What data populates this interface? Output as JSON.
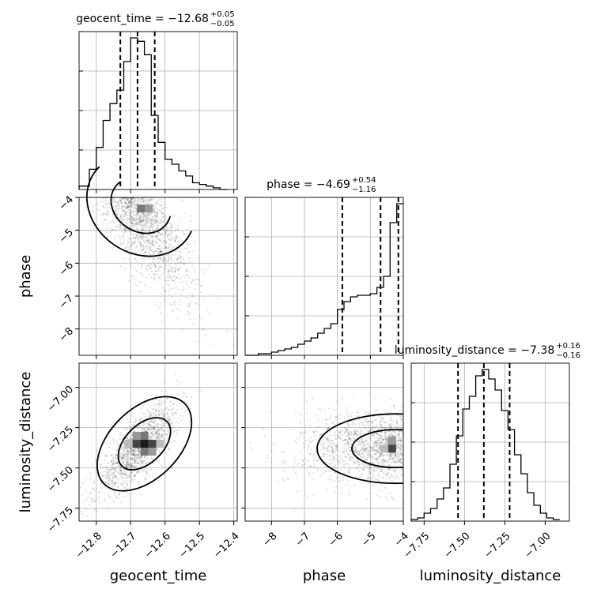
{
  "chart_data": {
    "type": "corner",
    "parameters": [
      "geocent_time",
      "phase",
      "luminosity_distance"
    ],
    "axis_labels": {
      "geocent_time": "geocent_time",
      "phase": "phase",
      "luminosity_distance": "luminosity_distance"
    },
    "ranges": {
      "geocent_time": [
        -12.85,
        -12.39
      ],
      "phase": [
        -8.8,
        -4.0
      ],
      "luminosity_distance": [
        -7.83,
        -6.85
      ]
    },
    "ticks": {
      "geocent_time": [
        -12.8,
        -12.7,
        -12.6,
        -12.5,
        -12.4
      ],
      "phase": [
        -8,
        -7,
        -6,
        -5,
        -4
      ],
      "luminosity_distance": [
        -7.75,
        -7.5,
        -7.25,
        -7.0
      ]
    },
    "tick_labels": {
      "geocent_time": [
        "−12.8",
        "−12.7",
        "−12.6",
        "−12.5",
        "−12.4"
      ],
      "phase": [
        "−8",
        "−7",
        "−6",
        "−5",
        "−4"
      ],
      "luminosity_distance": [
        "−7.75",
        "−7.50",
        "−7.25",
        "−7.00"
      ]
    },
    "titles": [
      {
        "param": "geocent_time",
        "prefix": "geocent_time = −12.68",
        "plus": "+0.05",
        "minus": "−0.05"
      },
      {
        "param": "phase",
        "prefix": "phase = −4.69",
        "plus": "+0.54",
        "minus": "−1.16"
      },
      {
        "param": "luminosity_distance",
        "prefix": "luminosity_distance = −7.38",
        "plus": "+0.16",
        "minus": "−0.16"
      }
    ],
    "quantiles": {
      "geocent_time": [
        -12.73,
        -12.68,
        -12.63
      ],
      "phase": [
        -5.85,
        -4.69,
        -4.15
      ],
      "luminosity_distance": [
        -7.54,
        -7.38,
        -7.22
      ]
    },
    "histograms": {
      "geocent_time": {
        "edges": [
          -12.85,
          -12.82,
          -12.8,
          -12.78,
          -12.76,
          -12.74,
          -12.72,
          -12.7,
          -12.68,
          -12.66,
          -12.64,
          -12.62,
          -12.6,
          -12.58,
          -12.56,
          -12.54,
          -12.52,
          -12.5,
          -12.48,
          -12.46,
          -12.44,
          -12.42
        ],
        "counts": [
          0.02,
          0.12,
          0.25,
          0.41,
          0.51,
          0.59,
          0.76,
          0.9,
          0.88,
          0.8,
          0.44,
          0.28,
          0.18,
          0.15,
          0.11,
          0.08,
          0.04,
          0.03,
          0.02,
          0.01,
          0.0
        ]
      },
      "phase": {
        "edges": [
          -8.8,
          -8.4,
          -8.2,
          -8.0,
          -7.8,
          -7.6,
          -7.4,
          -7.2,
          -7.0,
          -6.8,
          -6.6,
          -6.4,
          -6.2,
          -6.0,
          -5.8,
          -5.6,
          -5.4,
          -5.2,
          -5.0,
          -4.8,
          -4.6,
          -4.4,
          -4.2,
          -4.0
        ],
        "counts": [
          0.0,
          0.01,
          0.01,
          0.02,
          0.03,
          0.04,
          0.05,
          0.07,
          0.09,
          0.11,
          0.14,
          0.17,
          0.2,
          0.29,
          0.34,
          0.37,
          0.38,
          0.38,
          0.39,
          0.43,
          0.5,
          0.84,
          0.96
        ]
      },
      "luminosity_distance": {
        "edges": [
          -7.83,
          -7.79,
          -7.75,
          -7.71,
          -7.67,
          -7.63,
          -7.59,
          -7.55,
          -7.51,
          -7.47,
          -7.43,
          -7.39,
          -7.35,
          -7.31,
          -7.27,
          -7.23,
          -7.19,
          -7.15,
          -7.11,
          -7.07,
          -7.03,
          -6.99,
          -6.95,
          -6.91
        ],
        "counts": [
          0.01,
          0.02,
          0.05,
          0.08,
          0.14,
          0.21,
          0.36,
          0.54,
          0.71,
          0.79,
          0.92,
          0.96,
          0.9,
          0.83,
          0.7,
          0.58,
          0.42,
          0.3,
          0.18,
          0.1,
          0.05,
          0.02,
          0.01
        ]
      }
    },
    "pairs": [
      {
        "x": "geocent_time",
        "y": "phase",
        "center": [
          -12.68,
          -4.2
        ],
        "spread": [
          0.06,
          0.35
        ],
        "density_peak": [
          -12.67,
          -4.1
        ]
      },
      {
        "x": "geocent_time",
        "y": "luminosity_distance",
        "center": [
          -12.68,
          -7.38
        ],
        "spread": [
          0.06,
          0.14
        ],
        "density_peak": [
          -12.66,
          -7.35
        ]
      },
      {
        "x": "phase",
        "y": "luminosity_distance",
        "center": [
          -4.6,
          -7.37
        ],
        "spread": [
          0.6,
          0.1
        ],
        "density_peak": [
          -4.1,
          -7.38
        ]
      }
    ]
  }
}
